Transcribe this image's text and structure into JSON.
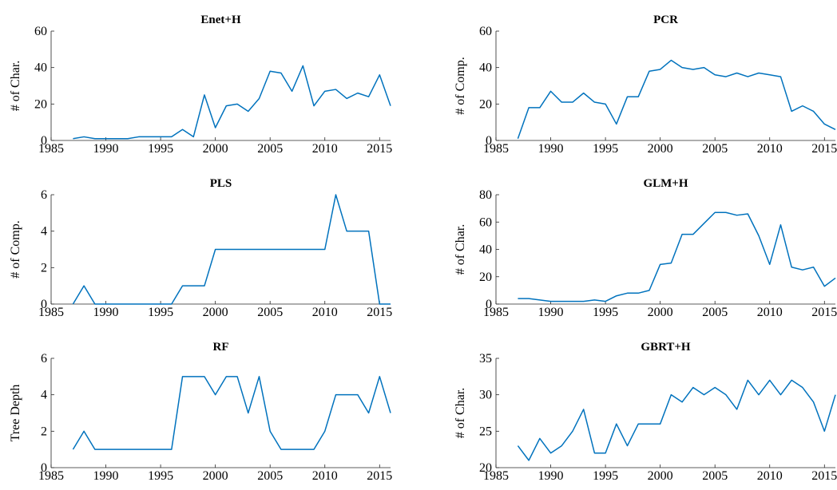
{
  "chart_data": [
    {
      "type": "line",
      "title": "Enet+H",
      "ylabel": "# of Char.",
      "color": "#0072bd",
      "x": [
        1987,
        1988,
        1989,
        1990,
        1991,
        1992,
        1993,
        1994,
        1995,
        1996,
        1997,
        1998,
        1999,
        2000,
        2001,
        2002,
        2003,
        2004,
        2005,
        2006,
        2007,
        2008,
        2009,
        2010,
        2011,
        2012,
        2013,
        2014,
        2015,
        2016
      ],
      "values": [
        1,
        2,
        1,
        1,
        1,
        1,
        2,
        2,
        2,
        2,
        6,
        2,
        25,
        7,
        19,
        20,
        16,
        23,
        38,
        37,
        27,
        41,
        19,
        27,
        28,
        23,
        26,
        24,
        36,
        19
      ],
      "xlim": [
        1985,
        2016
      ],
      "ylim": [
        0,
        60
      ],
      "xticks": [
        1985,
        1990,
        1995,
        2000,
        2005,
        2010,
        2015
      ],
      "yticks": [
        0,
        20,
        40,
        60
      ]
    },
    {
      "type": "line",
      "title": "PCR",
      "ylabel": "# of Comp.",
      "color": "#0072bd",
      "x": [
        1987,
        1988,
        1989,
        1990,
        1991,
        1992,
        1993,
        1994,
        1995,
        1996,
        1997,
        1998,
        1999,
        2000,
        2001,
        2002,
        2003,
        2004,
        2005,
        2006,
        2007,
        2008,
        2009,
        2010,
        2011,
        2012,
        2013,
        2014,
        2015,
        2016
      ],
      "values": [
        1,
        18,
        18,
        27,
        21,
        21,
        26,
        21,
        20,
        9,
        24,
        24,
        38,
        39,
        44,
        40,
        39,
        40,
        36,
        35,
        37,
        35,
        37,
        36,
        35,
        16,
        19,
        16,
        9,
        6
      ],
      "xlim": [
        1985,
        2016
      ],
      "ylim": [
        0,
        60
      ],
      "xticks": [
        1985,
        1990,
        1995,
        2000,
        2005,
        2010,
        2015
      ],
      "yticks": [
        0,
        20,
        40,
        60
      ]
    },
    {
      "type": "line",
      "title": "PLS",
      "ylabel": "# of Comp.",
      "color": "#0072bd",
      "x": [
        1987,
        1988,
        1989,
        1990,
        1991,
        1992,
        1993,
        1994,
        1995,
        1996,
        1997,
        1998,
        1999,
        2000,
        2001,
        2002,
        2003,
        2004,
        2005,
        2006,
        2007,
        2008,
        2009,
        2010,
        2011,
        2012,
        2013,
        2014,
        2015,
        2016
      ],
      "values": [
        0,
        1,
        0,
        0,
        0,
        0,
        0,
        0,
        0,
        0,
        1,
        1,
        1,
        3,
        3,
        3,
        3,
        3,
        3,
        3,
        3,
        3,
        3,
        3,
        6,
        4,
        4,
        4,
        0,
        0
      ],
      "xlim": [
        1985,
        2016
      ],
      "ylim": [
        0,
        6
      ],
      "xticks": [
        1985,
        1990,
        1995,
        2000,
        2005,
        2010,
        2015
      ],
      "yticks": [
        0,
        2,
        4,
        6
      ]
    },
    {
      "type": "line",
      "title": "GLM+H",
      "ylabel": "# of Char.",
      "color": "#0072bd",
      "x": [
        1987,
        1988,
        1989,
        1990,
        1991,
        1992,
        1993,
        1994,
        1995,
        1996,
        1997,
        1998,
        1999,
        2000,
        2001,
        2002,
        2003,
        2004,
        2005,
        2006,
        2007,
        2008,
        2009,
        2010,
        2011,
        2012,
        2013,
        2014,
        2015,
        2016
      ],
      "values": [
        4,
        4,
        3,
        2,
        2,
        2,
        2,
        3,
        2,
        6,
        8,
        8,
        10,
        29,
        30,
        51,
        51,
        59,
        67,
        67,
        65,
        66,
        50,
        29,
        58,
        27,
        25,
        27,
        13,
        19
      ],
      "xlim": [
        1985,
        2016
      ],
      "ylim": [
        0,
        80
      ],
      "xticks": [
        1985,
        1990,
        1995,
        2000,
        2005,
        2010,
        2015
      ],
      "yticks": [
        0,
        20,
        40,
        60,
        80
      ]
    },
    {
      "type": "line",
      "title": "RF",
      "ylabel": "Tree Depth",
      "color": "#0072bd",
      "x": [
        1987,
        1988,
        1989,
        1990,
        1991,
        1992,
        1993,
        1994,
        1995,
        1996,
        1997,
        1998,
        1999,
        2000,
        2001,
        2002,
        2003,
        2004,
        2005,
        2006,
        2007,
        2008,
        2009,
        2010,
        2011,
        2012,
        2013,
        2014,
        2015,
        2016
      ],
      "values": [
        1,
        2,
        1,
        1,
        1,
        1,
        1,
        1,
        1,
        1,
        5,
        5,
        5,
        4,
        5,
        5,
        3,
        5,
        2,
        1,
        1,
        1,
        1,
        2,
        4,
        4,
        4,
        3,
        5,
        3
      ],
      "xlim": [
        1985,
        2016
      ],
      "ylim": [
        0,
        6
      ],
      "xticks": [
        1985,
        1990,
        1995,
        2000,
        2005,
        2010,
        2015
      ],
      "yticks": [
        0,
        2,
        4,
        6
      ]
    },
    {
      "type": "line",
      "title": "GBRT+H",
      "ylabel": "# of Char.",
      "color": "#0072bd",
      "x": [
        1987,
        1988,
        1989,
        1990,
        1991,
        1992,
        1993,
        1994,
        1995,
        1996,
        1997,
        1998,
        1999,
        2000,
        2001,
        2002,
        2003,
        2004,
        2005,
        2006,
        2007,
        2008,
        2009,
        2010,
        2011,
        2012,
        2013,
        2014,
        2015,
        2016
      ],
      "values": [
        23,
        21,
        24,
        22,
        23,
        25,
        28,
        22,
        22,
        26,
        23,
        26,
        26,
        26,
        30,
        29,
        31,
        30,
        31,
        30,
        28,
        32,
        30,
        32,
        30,
        32,
        31,
        29,
        25,
        30
      ],
      "xlim": [
        1985,
        2016
      ],
      "ylim": [
        20,
        35
      ],
      "xticks": [
        1985,
        1990,
        1995,
        2000,
        2005,
        2010,
        2015
      ],
      "yticks": [
        20,
        25,
        30,
        35
      ]
    }
  ]
}
